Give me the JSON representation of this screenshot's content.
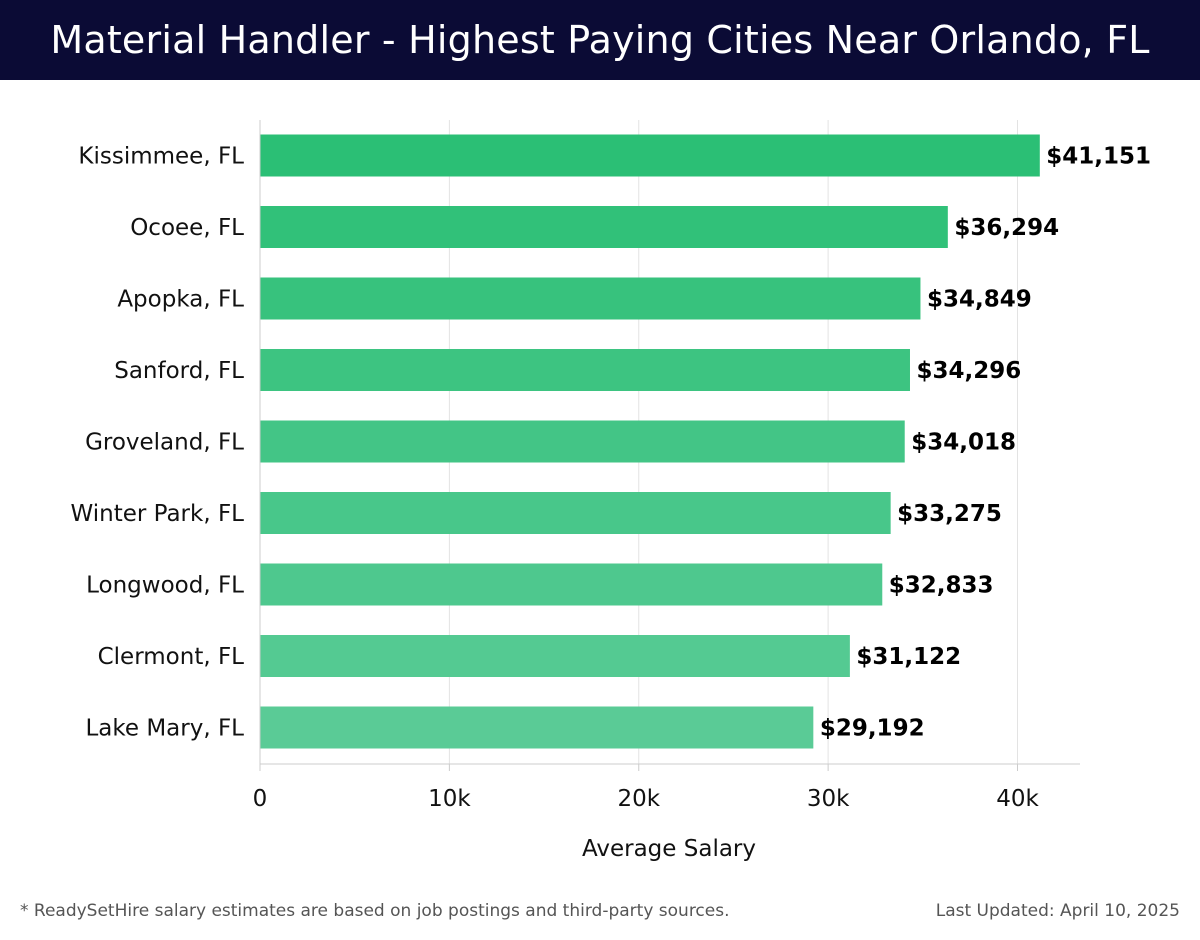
{
  "header": {
    "title": "Material Handler - Highest Paying Cities Near Orlando, FL",
    "background": "#0b0b35"
  },
  "chart_data": {
    "type": "bar",
    "orientation": "horizontal",
    "title": "Material Handler - Highest Paying Cities Near Orlando, FL",
    "categories": [
      "Kissimmee, FL",
      "Ocoee, FL",
      "Apopka, FL",
      "Sanford, FL",
      "Groveland, FL",
      "Winter Park, FL",
      "Longwood, FL",
      "Clermont, FL",
      "Lake Mary, FL"
    ],
    "values": [
      41151,
      36294,
      34849,
      34296,
      34018,
      33275,
      32833,
      31122,
      29192
    ],
    "value_labels": [
      "$41,151",
      "$36,294",
      "$34,849",
      "$34,296",
      "$34,018",
      "$33,275",
      "$32,833",
      "$31,122",
      "$29,192"
    ],
    "xlabel": "Average Salary",
    "ylabel": "",
    "xlim": [
      0,
      43300
    ],
    "xticks": [
      0,
      10000,
      20000,
      30000,
      40000
    ],
    "xtick_labels": [
      "0",
      "10k",
      "20k",
      "30k",
      "40k"
    ],
    "grid": true,
    "bar_color_top": "#2bbf75",
    "bar_color_bottom": "#5acb96"
  },
  "footer": {
    "note": "* ReadySetHire salary estimates are based on job postings and third-party sources.",
    "updated": "Last Updated: April 10, 2025"
  }
}
